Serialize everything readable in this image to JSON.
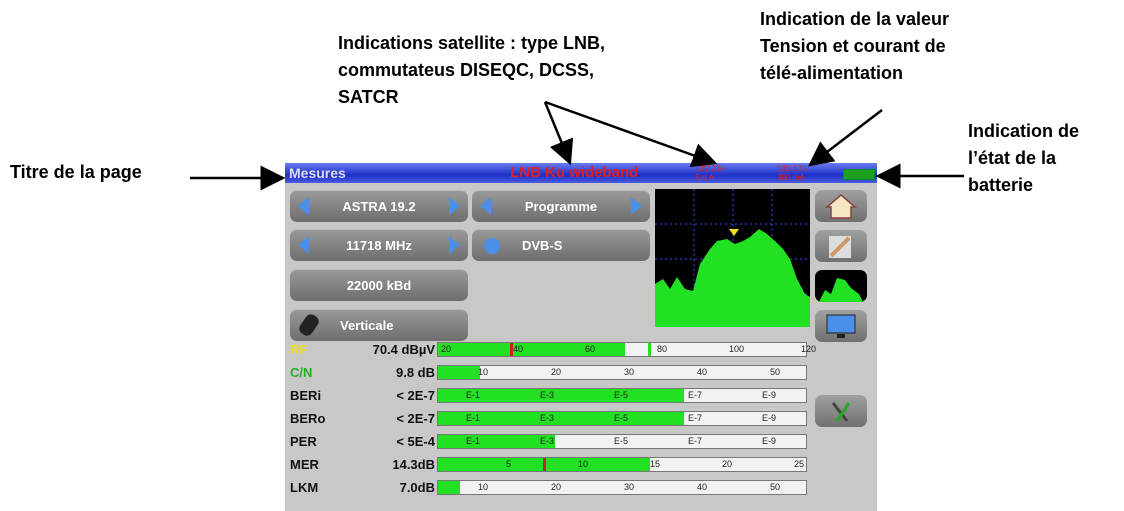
{
  "annotations": {
    "title_label": "Titre de la page",
    "satellite": [
      "Indications satellite : type LNB,",
      "commutateus DISEQC, DCSS,",
      "SATCR"
    ],
    "power": [
      "Indication de la valeur",
      "Tension et courant de",
      "télé-alimentation"
    ],
    "battery": [
      "Indication de",
      "l’état de la",
      "batterie"
    ]
  },
  "header": {
    "title": "Mesures",
    "lnb": "LNB Ku wideband",
    "status": [
      "13V 22k",
      "Sat A"
    ],
    "power": [
      "13V 172",
      "300 mA"
    ]
  },
  "controls": {
    "satellite": "ASTRA 19.2",
    "program": "Programme",
    "frequency": "11718 MHz",
    "standard": "DVB-S",
    "symbol_rate": "22000 kBd",
    "polarization": "Verticale"
  },
  "measures": [
    {
      "label": "RF",
      "value": "70.4 dBµV",
      "scale": [
        "20",
        "40",
        "60",
        "80",
        "100",
        "120"
      ]
    },
    {
      "label": "C/N",
      "value": "9.8 dB",
      "scale": [
        "10",
        "20",
        "30",
        "40",
        "50"
      ]
    },
    {
      "label": "BERi",
      "value": "< 2E-7",
      "scale": [
        "E-1",
        "E-3",
        "E-5",
        "E-7",
        "E-9"
      ]
    },
    {
      "label": "BERo",
      "value": "< 2E-7",
      "scale": [
        "E-1",
        "E-3",
        "E-5",
        "E-7",
        "E-9"
      ]
    },
    {
      "label": "PER",
      "value": "< 5E-4",
      "scale": [
        "E-1",
        "E-3",
        "E-5",
        "E-7",
        "E-9"
      ]
    },
    {
      "label": "MER",
      "value": "14.3dB",
      "scale": [
        "5",
        "10",
        "15",
        "20",
        "25"
      ]
    },
    {
      "label": "LKM",
      "value": "7.0dB",
      "scale": [
        "10",
        "20",
        "30",
        "40",
        "50"
      ]
    }
  ]
}
